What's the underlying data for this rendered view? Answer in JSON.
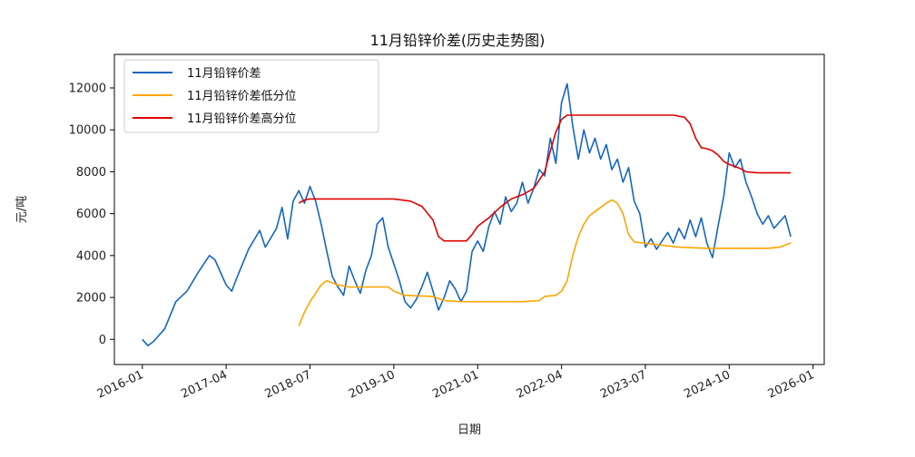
{
  "chart_data": {
    "type": "line",
    "title": "11月铅锌价差(历史走势图)",
    "xlabel": "日期",
    "ylabel": "元/吨",
    "x_ticks": [
      "2016-01",
      "2017-04",
      "2018-07",
      "2019-10",
      "2021-01",
      "2022-04",
      "2023-07",
      "2024-10",
      "2026-01"
    ],
    "y_ticks": [
      0,
      2000,
      4000,
      6000,
      8000,
      10000,
      12000
    ],
    "xlim": [
      "2015-08",
      "2026-03"
    ],
    "ylim": [
      -1200,
      13600
    ],
    "legend_position": "top-left",
    "grid": false,
    "series": [
      {
        "name": "11月铅锌价差",
        "color": "#1565c0",
        "points": [
          [
            "2016-01",
            0
          ],
          [
            "2016-02",
            -300
          ],
          [
            "2016-03",
            -100
          ],
          [
            "2016-05",
            500
          ],
          [
            "2016-07",
            1800
          ],
          [
            "2016-09",
            2300
          ],
          [
            "2016-11",
            3200
          ],
          [
            "2017-01",
            4000
          ],
          [
            "2017-02",
            3800
          ],
          [
            "2017-04",
            2600
          ],
          [
            "2017-05",
            2300
          ],
          [
            "2017-06",
            3000
          ],
          [
            "2017-08",
            4300
          ],
          [
            "2017-10",
            5200
          ],
          [
            "2017-11",
            4400
          ],
          [
            "2018-01",
            5300
          ],
          [
            "2018-02",
            6300
          ],
          [
            "2018-03",
            4800
          ],
          [
            "2018-04",
            6600
          ],
          [
            "2018-05",
            7100
          ],
          [
            "2018-06",
            6500
          ],
          [
            "2018-07",
            7300
          ],
          [
            "2018-08",
            6600
          ],
          [
            "2018-09",
            5500
          ],
          [
            "2018-10",
            4200
          ],
          [
            "2018-11",
            3000
          ],
          [
            "2018-12",
            2500
          ],
          [
            "2019-01",
            2100
          ],
          [
            "2019-02",
            3500
          ],
          [
            "2019-03",
            2800
          ],
          [
            "2019-04",
            2200
          ],
          [
            "2019-05",
            3300
          ],
          [
            "2019-06",
            4000
          ],
          [
            "2019-07",
            5500
          ],
          [
            "2019-08",
            5800
          ],
          [
            "2019-09",
            4400
          ],
          [
            "2019-10",
            3600
          ],
          [
            "2019-11",
            2800
          ],
          [
            "2019-12",
            1800
          ],
          [
            "2020-01",
            1500
          ],
          [
            "2020-02",
            1900
          ],
          [
            "2020-03",
            2500
          ],
          [
            "2020-04",
            3200
          ],
          [
            "2020-05",
            2300
          ],
          [
            "2020-06",
            1400
          ],
          [
            "2020-07",
            2000
          ],
          [
            "2020-08",
            2800
          ],
          [
            "2020-09",
            2400
          ],
          [
            "2020-10",
            1800
          ],
          [
            "2020-11",
            2300
          ],
          [
            "2020-12",
            4200
          ],
          [
            "2021-01",
            4700
          ],
          [
            "2021-02",
            4200
          ],
          [
            "2021-03",
            5400
          ],
          [
            "2021-04",
            6100
          ],
          [
            "2021-05",
            5500
          ],
          [
            "2021-06",
            6800
          ],
          [
            "2021-07",
            6100
          ],
          [
            "2021-08",
            6500
          ],
          [
            "2021-09",
            7500
          ],
          [
            "2021-10",
            6500
          ],
          [
            "2021-11",
            7200
          ],
          [
            "2021-12",
            8100
          ],
          [
            "2022-01",
            7800
          ],
          [
            "2022-02",
            9600
          ],
          [
            "2022-03",
            8400
          ],
          [
            "2022-04",
            11300
          ],
          [
            "2022-05",
            12200
          ],
          [
            "2022-06",
            10200
          ],
          [
            "2022-07",
            8600
          ],
          [
            "2022-08",
            10000
          ],
          [
            "2022-09",
            8900
          ],
          [
            "2022-10",
            9600
          ],
          [
            "2022-11",
            8600
          ],
          [
            "2022-12",
            9300
          ],
          [
            "2023-01",
            8100
          ],
          [
            "2023-02",
            8600
          ],
          [
            "2023-03",
            7500
          ],
          [
            "2023-04",
            8200
          ],
          [
            "2023-05",
            6600
          ],
          [
            "2023-06",
            6000
          ],
          [
            "2023-07",
            4400
          ],
          [
            "2023-08",
            4800
          ],
          [
            "2023-09",
            4300
          ],
          [
            "2023-10",
            4700
          ],
          [
            "2023-11",
            5100
          ],
          [
            "2023-12",
            4600
          ],
          [
            "2024-01",
            5300
          ],
          [
            "2024-02",
            4800
          ],
          [
            "2024-03",
            5700
          ],
          [
            "2024-04",
            4900
          ],
          [
            "2024-05",
            5800
          ],
          [
            "2024-06",
            4600
          ],
          [
            "2024-07",
            3900
          ],
          [
            "2024-08",
            5400
          ],
          [
            "2024-09",
            6800
          ],
          [
            "2024-10",
            8900
          ],
          [
            "2024-11",
            8200
          ],
          [
            "2024-12",
            8600
          ],
          [
            "2025-01",
            7500
          ],
          [
            "2025-02",
            6800
          ],
          [
            "2025-03",
            6000
          ],
          [
            "2025-04",
            5500
          ],
          [
            "2025-05",
            5900
          ],
          [
            "2025-06",
            5300
          ],
          [
            "2025-07",
            5600
          ],
          [
            "2025-08",
            5900
          ],
          [
            "2025-09",
            4900
          ]
        ]
      },
      {
        "name": "11月铅锌价差低分位",
        "color": "#ffa500",
        "points": [
          [
            "2018-05",
            650
          ],
          [
            "2018-06",
            1300
          ],
          [
            "2018-07",
            1800
          ],
          [
            "2018-08",
            2200
          ],
          [
            "2018-09",
            2600
          ],
          [
            "2018-10",
            2800
          ],
          [
            "2018-11",
            2700
          ],
          [
            "2018-12",
            2600
          ],
          [
            "2019-02",
            2500
          ],
          [
            "2019-06",
            2500
          ],
          [
            "2019-09",
            2500
          ],
          [
            "2019-10",
            2300
          ],
          [
            "2019-12",
            2100
          ],
          [
            "2020-05",
            2050
          ],
          [
            "2020-07",
            1850
          ],
          [
            "2020-10",
            1800
          ],
          [
            "2021-06",
            1800
          ],
          [
            "2021-09",
            1800
          ],
          [
            "2021-12",
            1850
          ],
          [
            "2022-01",
            2050
          ],
          [
            "2022-03",
            2100
          ],
          [
            "2022-04",
            2300
          ],
          [
            "2022-05",
            2800
          ],
          [
            "2022-06",
            4000
          ],
          [
            "2022-07",
            4900
          ],
          [
            "2022-08",
            5500
          ],
          [
            "2022-09",
            5900
          ],
          [
            "2022-10",
            6100
          ],
          [
            "2022-11",
            6300
          ],
          [
            "2022-12",
            6500
          ],
          [
            "2023-01",
            6650
          ],
          [
            "2023-02",
            6500
          ],
          [
            "2023-03",
            6000
          ],
          [
            "2023-04",
            5000
          ],
          [
            "2023-05",
            4650
          ],
          [
            "2023-08",
            4550
          ],
          [
            "2024-01",
            4400
          ],
          [
            "2024-06",
            4350
          ],
          [
            "2025-05",
            4350
          ],
          [
            "2025-07",
            4400
          ],
          [
            "2025-09",
            4600
          ]
        ]
      },
      {
        "name": "11月铅锌价差高分位",
        "color": "#e00000",
        "points": [
          [
            "2018-05",
            6500
          ],
          [
            "2018-06",
            6650
          ],
          [
            "2018-07",
            6700
          ],
          [
            "2019-09",
            6700
          ],
          [
            "2019-10",
            6700
          ],
          [
            "2020-01",
            6600
          ],
          [
            "2020-03",
            6350
          ],
          [
            "2020-05",
            5700
          ],
          [
            "2020-06",
            4900
          ],
          [
            "2020-07",
            4700
          ],
          [
            "2020-11",
            4700
          ],
          [
            "2020-12",
            5000
          ],
          [
            "2021-01",
            5400
          ],
          [
            "2021-03",
            5800
          ],
          [
            "2021-05",
            6300
          ],
          [
            "2021-07",
            6700
          ],
          [
            "2021-09",
            6900
          ],
          [
            "2021-11",
            7200
          ],
          [
            "2022-01",
            8000
          ],
          [
            "2022-02",
            9000
          ],
          [
            "2022-03",
            9900
          ],
          [
            "2022-04",
            10500
          ],
          [
            "2022-05",
            10700
          ],
          [
            "2023-12",
            10700
          ],
          [
            "2024-02",
            10600
          ],
          [
            "2024-03",
            10300
          ],
          [
            "2024-04",
            9600
          ],
          [
            "2024-05",
            9150
          ],
          [
            "2024-06",
            9100
          ],
          [
            "2024-07",
            9000
          ],
          [
            "2024-08",
            8800
          ],
          [
            "2024-09",
            8500
          ],
          [
            "2024-10",
            8350
          ],
          [
            "2024-11",
            8250
          ],
          [
            "2024-12",
            8150
          ],
          [
            "2025-01",
            8000
          ],
          [
            "2025-03",
            7950
          ],
          [
            "2025-09",
            7950
          ]
        ]
      }
    ]
  }
}
